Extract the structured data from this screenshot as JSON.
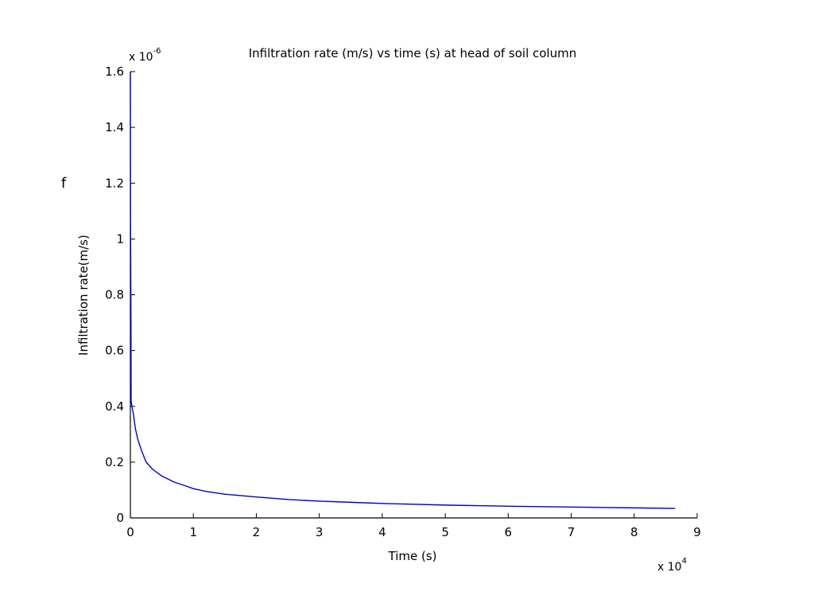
{
  "chart_data": {
    "type": "line",
    "title": "Infiltration rate (m/s) vs time (s) at head of soil column",
    "xlabel": "Time (s)",
    "ylabel": "Infiltration rate(m/s)",
    "side_label": "f",
    "x_exponent_label": "x 10",
    "x_exponent_power": "4",
    "y_exponent_label": "x 10",
    "y_exponent_power": "-6",
    "xlim": [
      0,
      9
    ],
    "ylim": [
      0,
      1.6
    ],
    "x_ticks": [
      "0",
      "1",
      "2",
      "3",
      "4",
      "5",
      "6",
      "7",
      "8",
      "9"
    ],
    "y_ticks": [
      "0",
      "0.2",
      "0.4",
      "0.6",
      "0.8",
      "1",
      "1.2",
      "1.4",
      "1.6"
    ],
    "grid": false,
    "series": [
      {
        "color": "#0000c8",
        "x": [
          0,
          0.002,
          0.01,
          0.012,
          0.025,
          0.05,
          0.08,
          0.12,
          0.18,
          0.25,
          0.35,
          0.5,
          0.7,
          0.9,
          1.0,
          1.2,
          1.5,
          2.0,
          2.5,
          3.0,
          3.5,
          4.0,
          4.5,
          5.0,
          5.5,
          6.0,
          7.0,
          8.0,
          8.65
        ],
        "y": [
          1.6,
          1.1,
          0.68,
          0.42,
          0.4,
          0.37,
          0.32,
          0.28,
          0.24,
          0.2,
          0.175,
          0.15,
          0.128,
          0.113,
          0.105,
          0.095,
          0.085,
          0.075,
          0.066,
          0.06,
          0.056,
          0.052,
          0.049,
          0.046,
          0.044,
          0.042,
          0.039,
          0.036,
          0.034
        ]
      }
    ]
  }
}
